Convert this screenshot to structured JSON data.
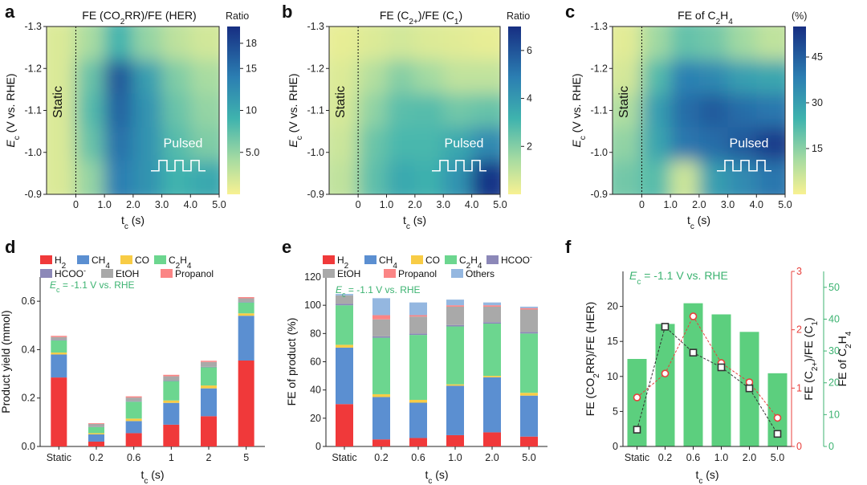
{
  "panels": {
    "a": "a",
    "b": "b",
    "c": "c",
    "d": "d",
    "e": "e",
    "f": "f"
  },
  "common": {
    "static_label": "Static",
    "pulsed_label": "Pulsed",
    "tc_label": "t",
    "tc_sub": "c",
    "tc_unit": " (s)",
    "ec_label": "E",
    "ec_sub": "c",
    "ec_unit": " (V vs. RHE)",
    "condition_e": "-1.1 V vs. RHE",
    "condition_prefix": "E",
    "condition_sub": "c",
    "condition_eq": " = "
  },
  "chart_data": [
    {
      "id": "a",
      "type": "heatmap",
      "title_parts": [
        "FE (CO",
        "2",
        "RR)/FE (HER)"
      ],
      "colorbar_label": "Ratio",
      "colorbar_ticks": [
        "18",
        "15",
        "10",
        "5.0"
      ],
      "colorbar_tick_values": [
        18,
        15,
        10,
        5
      ],
      "colorbar_range": [
        0,
        20
      ],
      "x_ticks": [
        "0",
        "1.0",
        "2.0",
        "3.0",
        "4.0",
        "5.0"
      ],
      "y_ticks": [
        "-1.3",
        "-1.2",
        "-1.1",
        "-1.0",
        "-0.9"
      ],
      "x": [
        "Static",
        0.2,
        0.6,
        1.0,
        2.0,
        5.0
      ],
      "y": [
        -1.3,
        -1.2,
        -1.1,
        -1.0,
        -0.9
      ],
      "z": [
        [
          1.5,
          4,
          9,
          5,
          3,
          2
        ],
        [
          1.5,
          7,
          17,
          11,
          6,
          4
        ],
        [
          1.5,
          8,
          16,
          12,
          7,
          5
        ],
        [
          1.5,
          7,
          15,
          12,
          8,
          6
        ],
        [
          1.5,
          5,
          14,
          12,
          9,
          10
        ]
      ]
    },
    {
      "id": "b",
      "type": "heatmap",
      "title_parts": [
        "FE (C",
        "2+",
        ")/FE (C",
        "1",
        ")"
      ],
      "colorbar_label": "Ratio",
      "colorbar_ticks": [
        "6",
        "4",
        "2"
      ],
      "colorbar_tick_values": [
        6,
        4,
        2
      ],
      "colorbar_range": [
        0,
        7
      ],
      "x_ticks": [
        "0",
        "1.0",
        "2.0",
        "3.0",
        "4.0",
        "5.0"
      ],
      "y_ticks": [
        "-1.3",
        "-1.2",
        "-1.1",
        "-1.0",
        "-0.9"
      ],
      "x": [
        "Static",
        0.2,
        0.6,
        1.0,
        2.0,
        5.0
      ],
      "y": [
        -1.3,
        -1.2,
        -1.1,
        -1.0,
        -0.9
      ],
      "z": [
        [
          0.3,
          0.5,
          0.7,
          0.5,
          0.4,
          0.3
        ],
        [
          0.5,
          1.2,
          2.0,
          1.5,
          1.0,
          1.0
        ],
        [
          0.6,
          1.8,
          2.7,
          2.8,
          2.3,
          2.5
        ],
        [
          0.8,
          2.4,
          3.0,
          3.0,
          3.5,
          4.5
        ],
        [
          1.0,
          2.6,
          3.5,
          3.2,
          4.2,
          6.8
        ]
      ]
    },
    {
      "id": "c",
      "type": "heatmap",
      "title_parts": [
        "FE of C",
        "2",
        "H",
        "4",
        ""
      ],
      "colorbar_label": "(%)",
      "colorbar_ticks": [
        "45",
        "30",
        "15"
      ],
      "colorbar_tick_values": [
        45,
        30,
        15
      ],
      "colorbar_range": [
        0,
        55
      ],
      "x_ticks": [
        "0",
        "1.0",
        "2.0",
        "3.0",
        "4.0",
        "5.0"
      ],
      "y_ticks": [
        "-1.3",
        "-1.2",
        "-1.1",
        "-1.0",
        "-0.9"
      ],
      "x": [
        "Static",
        0.2,
        0.6,
        1.0,
        2.0,
        5.0
      ],
      "y": [
        -1.3,
        -1.2,
        -1.1,
        -1.0,
        -0.9
      ],
      "z": [
        [
          3,
          12,
          20,
          18,
          12,
          8
        ],
        [
          5,
          22,
          38,
          36,
          30,
          28
        ],
        [
          10,
          30,
          42,
          46,
          42,
          40
        ],
        [
          14,
          28,
          40,
          42,
          46,
          52
        ],
        [
          18,
          22,
          6,
          30,
          35,
          40
        ]
      ]
    },
    {
      "id": "d",
      "type": "bar",
      "stacked": true,
      "ylabel": "Product yield (mmol)",
      "ylim": [
        0,
        0.7
      ],
      "y_ticks": [
        "0.0",
        "0.2",
        "0.4",
        "0.6"
      ],
      "categories": [
        "Static",
        "0.2",
        "0.6",
        "1",
        "2",
        "5"
      ],
      "legend_rows": [
        [
          "H",
          "CH",
          "CO",
          "C"
        ],
        [
          "HCOO",
          "EtOH",
          "Propanol"
        ]
      ],
      "series": [
        {
          "name": "H2",
          "color": "#f0393a",
          "values": [
            0.285,
            0.02,
            0.055,
            0.09,
            0.125,
            0.355
          ]
        },
        {
          "name": "CH4",
          "color": "#5b8fd1",
          "values": [
            0.095,
            0.03,
            0.05,
            0.09,
            0.115,
            0.185
          ]
        },
        {
          "name": "CO",
          "color": "#f8cc45",
          "values": [
            0.008,
            0.005,
            0.01,
            0.01,
            0.012,
            0.01
          ]
        },
        {
          "name": "C2H4",
          "color": "#6cd68f",
          "values": [
            0.05,
            0.025,
            0.07,
            0.08,
            0.075,
            0.045
          ]
        },
        {
          "name": "HCOO-",
          "color": "#8c88b8",
          "values": [
            0.002,
            0.001,
            0.002,
            0.002,
            0.002,
            0.002
          ]
        },
        {
          "name": "EtOH",
          "color": "#a9a9a9",
          "values": [
            0.012,
            0.012,
            0.015,
            0.018,
            0.02,
            0.015
          ]
        },
        {
          "name": "Propanol",
          "color": "#fb8585",
          "values": [
            0.005,
            0.003,
            0.005,
            0.006,
            0.005,
            0.005
          ]
        }
      ]
    },
    {
      "id": "e",
      "type": "bar",
      "stacked": true,
      "ylabel": "FE of product (%)",
      "ylim": [
        0,
        120
      ],
      "y_ticks": [
        "0",
        "20",
        "40",
        "60",
        "80",
        "100",
        "120"
      ],
      "categories": [
        "Static",
        "0.2",
        "0.6",
        "1.0",
        "2.0",
        "5.0"
      ],
      "legend_rows": [
        [
          "H",
          "CH",
          "CO",
          "C",
          "HCOO"
        ],
        [
          "EtOH",
          "Propanol",
          "Others"
        ]
      ],
      "series": [
        {
          "name": "H2",
          "color": "#f0393a",
          "values": [
            30,
            5,
            6,
            8,
            10,
            7
          ]
        },
        {
          "name": "CH4",
          "color": "#5b8fd1",
          "values": [
            40,
            30,
            25,
            35,
            39,
            29
          ]
        },
        {
          "name": "CO",
          "color": "#f8cc45",
          "values": [
            2,
            2,
            2,
            1,
            1,
            2
          ]
        },
        {
          "name": "C2H4",
          "color": "#6cd68f",
          "values": [
            28,
            40,
            46,
            41,
            37,
            42
          ]
        },
        {
          "name": "HCOO-",
          "color": "#8c88b8",
          "values": [
            1,
            1,
            1,
            1,
            1,
            1
          ]
        },
        {
          "name": "EtOH",
          "color": "#a9a9a9",
          "values": [
            6,
            12,
            12,
            13,
            11,
            16
          ]
        },
        {
          "name": "Propanol",
          "color": "#fb8585",
          "values": [
            0,
            3,
            1,
            1,
            1,
            1
          ]
        },
        {
          "name": "Others",
          "color": "#94b7e0",
          "values": [
            1,
            12,
            9,
            4,
            2,
            1
          ]
        }
      ]
    },
    {
      "id": "f",
      "type": "bar",
      "categories": [
        "Static",
        "0.2",
        "0.6",
        "1.0",
        "2.0",
        "5.0"
      ],
      "left_axis": {
        "label_parts": [
          "FE (CO",
          "2",
          "RR)/FE (HER)"
        ],
        "ylim": [
          0,
          25
        ],
        "ticks": [
          "0",
          "5",
          "10",
          "15",
          "20"
        ]
      },
      "right_axis_1": {
        "label_parts": [
          "FE (C",
          "2+",
          ")/FE (C",
          "1",
          ")"
        ],
        "ylim": [
          0,
          3
        ],
        "ticks": [
          "0",
          "1",
          "2",
          "3"
        ],
        "color": "#e8403c"
      },
      "right_axis_2": {
        "label_parts": [
          "FE of C",
          "2",
          "H",
          "4",
          ""
        ],
        "ylim": [
          0,
          55
        ],
        "ticks": [
          "0",
          "10",
          "20",
          "30",
          "40",
          "50"
        ],
        "color": "#3cb371"
      },
      "bars_c2h4": {
        "color": "#5ccf7e",
        "values": [
          27.5,
          38.5,
          45,
          41.5,
          36,
          23
        ]
      },
      "ratio_co2rr_her": {
        "color": "#333333",
        "values": [
          2.4,
          17.1,
          13.4,
          11.3,
          8.3,
          1.8
        ]
      },
      "ratio_c2_c1": {
        "color": "#e8403c",
        "values": [
          0.84,
          1.25,
          2.23,
          1.43,
          1.1,
          0.49
        ]
      }
    }
  ]
}
